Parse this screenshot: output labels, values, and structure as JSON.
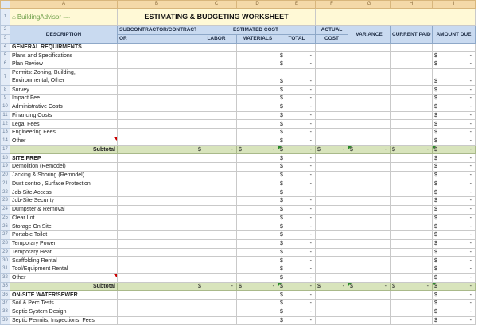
{
  "columns": [
    "A",
    "B",
    "C",
    "D",
    "E",
    "F",
    "G",
    "H",
    "I"
  ],
  "logo": {
    "text": "BuildingAdvisor",
    "suffix": ".com",
    "icon": "house-icon"
  },
  "title": "ESTIMATING & BUDGETING WORKSHEET",
  "headers": {
    "description": "DESCRIPTION",
    "subcontractor_line1": "SUBCONTRACTOR/CONTRACT",
    "subcontractor_line2": "OR",
    "estimated_cost": "ESTIMATED COST",
    "labor": "LABOR",
    "materials": "MATERIALS",
    "total": "TOTAL",
    "actual_cost_line1": "ACTUAL",
    "actual_cost_line2": "COST",
    "variance": "VARIANCE",
    "current_paid": "CURRENT PAID",
    "amount_due": "AMOUNT DUE"
  },
  "currency": "$",
  "dash": "-",
  "subtotal_label": "Subtotal",
  "rows": [
    {
      "n": "4",
      "label": "GENERAL REQUIRMENTS",
      "type": "section",
      "money": false
    },
    {
      "n": "5",
      "label": "Plans and Specifications",
      "type": "item"
    },
    {
      "n": "6",
      "label": "Plan Review",
      "type": "item"
    },
    {
      "n": "7",
      "label": "Permits: Zoning, Building,",
      "label2": "Environmental, Other",
      "type": "item2"
    },
    {
      "n": "8",
      "label": "Survey",
      "type": "item"
    },
    {
      "n": "9",
      "label": "Impact Fee",
      "type": "item"
    },
    {
      "n": "10",
      "label": "Administrative Costs",
      "type": "item"
    },
    {
      "n": "11",
      "label": "Financing Costs",
      "type": "item"
    },
    {
      "n": "12",
      "label": "Legal Fees",
      "type": "item"
    },
    {
      "n": "13",
      "label": "Engineering Fees",
      "type": "item"
    },
    {
      "n": "14",
      "label": "Other",
      "type": "item",
      "comment": true
    },
    {
      "n": "17",
      "type": "subtotal"
    },
    {
      "n": "18",
      "label": "SITE PREP",
      "type": "section",
      "money": true
    },
    {
      "n": "19",
      "label": "Demolition (Remodel)",
      "type": "item"
    },
    {
      "n": "20",
      "label": "Jacking & Shoring (Remodel)",
      "type": "item"
    },
    {
      "n": "21",
      "label": "Dust control, Surface Protection",
      "type": "item"
    },
    {
      "n": "22",
      "label": "Job-Site Access",
      "type": "item"
    },
    {
      "n": "23",
      "label": "Job-Site Security",
      "type": "item"
    },
    {
      "n": "24",
      "label": "Dumpster & Removal",
      "type": "item"
    },
    {
      "n": "25",
      "label": "Clear Lot",
      "type": "item"
    },
    {
      "n": "26",
      "label": "Storage On Site",
      "type": "item"
    },
    {
      "n": "27",
      "label": "Portable Toilet",
      "type": "item"
    },
    {
      "n": "28",
      "label": "Temporary Power",
      "type": "item"
    },
    {
      "n": "29",
      "label": "Temporary Heat",
      "type": "item"
    },
    {
      "n": "30",
      "label": "Scaffolding Rental",
      "type": "item"
    },
    {
      "n": "31",
      "label": "Tool/Equipment Rental",
      "type": "item"
    },
    {
      "n": "32",
      "label": "Other",
      "type": "item",
      "comment": true
    },
    {
      "n": "35",
      "type": "subtotal"
    },
    {
      "n": "36",
      "label": "ON-SITE WATER/SEWER",
      "type": "section",
      "money": true
    },
    {
      "n": "37",
      "label": "Soil & Perc Tests",
      "type": "item"
    },
    {
      "n": "38",
      "label": "Septic System Design",
      "type": "item"
    },
    {
      "n": "39",
      "label": "Septic Permits, Inspections, Fees",
      "type": "item"
    }
  ],
  "colors": {
    "title_bg": "#fff9d6",
    "header_bg": "#c9daf0",
    "subtotal_bg": "#d8e4bc",
    "column_header_bg": "#f4d9a8"
  }
}
